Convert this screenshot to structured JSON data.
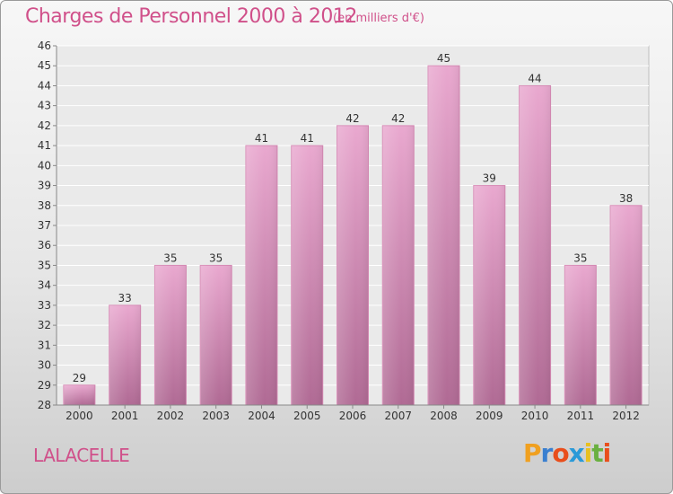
{
  "chart_data": {
    "type": "bar",
    "title": "Charges de Personnel 2000 à 2012",
    "subtitle": "(en milliers d'€)",
    "categories": [
      "2000",
      "2001",
      "2002",
      "2003",
      "2004",
      "2005",
      "2006",
      "2007",
      "2008",
      "2009",
      "2010",
      "2011",
      "2012"
    ],
    "values": [
      29,
      33,
      35,
      35,
      41,
      41,
      42,
      42,
      45,
      39,
      44,
      35,
      38
    ],
    "ylim": [
      28,
      46
    ],
    "yticks": [
      28,
      29,
      30,
      31,
      32,
      33,
      34,
      35,
      36,
      37,
      38,
      39,
      40,
      41,
      42,
      43,
      44,
      45,
      46
    ],
    "grid": true,
    "bar_color": "#c2719f",
    "xlabel": "",
    "ylabel": ""
  },
  "commune": "LALACELLE",
  "logo": {
    "letters": [
      "P",
      "r",
      "o",
      "x",
      "i",
      "t",
      "i"
    ],
    "colors": [
      "#f0a020",
      "#3a7fd0",
      "#e94e1b",
      "#2a9ad8",
      "#e8c020",
      "#6ab040",
      "#e94e1b"
    ]
  }
}
